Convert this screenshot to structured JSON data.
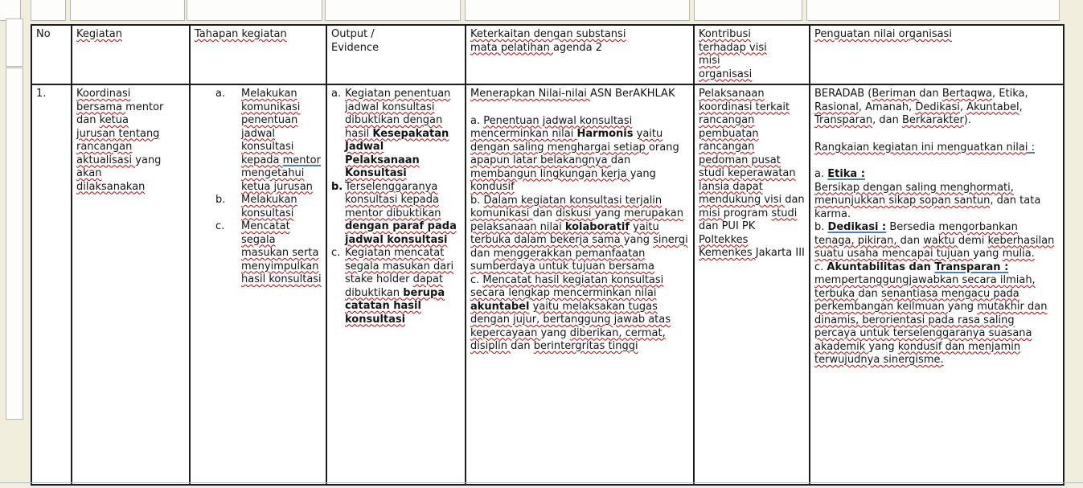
{
  "colors": {
    "page_bg": "#f1eedd",
    "table_border": "#1d1d1d",
    "spell_squiggle": "#c00000",
    "grammar_underline": "#4a7ebb",
    "bottom_rule": "#a6bcd7"
  },
  "table": {
    "headers": {
      "no": [
        [
          "No",
          ""
        ]
      ],
      "kegiatan": [
        [
          "Kegiatan",
          "s"
        ]
      ],
      "tahapan": [
        [
          "Tahapan kegiatan",
          "s"
        ]
      ],
      "output": [
        [
          "Output /\nEvidence",
          ""
        ]
      ],
      "keterkaitan": [
        [
          "Keterkaitan dengan substansi\n",
          "s"
        ],
        [
          "mata pelatihan ",
          "s"
        ],
        [
          "agenda 2",
          ""
        ]
      ],
      "kontribusi": [
        [
          "Kontribusi\nterhadap visi\nmisi\norganisasi",
          "s"
        ]
      ],
      "penguatan": [
        [
          "Penguatan nilai organisasi",
          "s"
        ]
      ]
    },
    "row1": {
      "no": [
        [
          "1.",
          ""
        ]
      ],
      "kegiatan": [
        [
          "Koordinasi bersama ",
          "s"
        ],
        [
          "mentor dan ",
          ""
        ],
        [
          "ketua jurusan tentang rancangan aktualisasi ",
          "s"
        ],
        [
          "yang ",
          ""
        ],
        [
          "akan dilaksanakan",
          "s"
        ]
      ],
      "tahapan_items": [
        {
          "marker": [
            [
              "a.",
              ""
            ]
          ],
          "text": [
            [
              "Melakukan komunikasi penentuan jadwal konsultasi kepada ",
              "s"
            ],
            [
              "mentor ",
              "u"
            ],
            [
              "mengetahui ketua jurusan",
              "s"
            ]
          ]
        },
        {
          "marker": [
            [
              "b.",
              ""
            ]
          ],
          "text": [
            [
              "Melakukan konsultasi",
              "s"
            ]
          ]
        },
        {
          "marker": [
            [
              "c.",
              ""
            ]
          ],
          "text": [
            [
              "Mencatat segala masukan serta menyimpulkan hasil konsultasi",
              "s"
            ]
          ]
        }
      ],
      "output_items": [
        {
          "marker": [
            [
              "a.",
              ""
            ]
          ],
          "text": [
            [
              "Kegiatan penentuan jadwal konsultasi dibuktikan dengan hasil ",
              "s"
            ],
            [
              "Kesepakatan Jadwal Pelaksanaan Konsultasi",
              "bs"
            ]
          ]
        },
        {
          "marker": [
            [
              "b.",
              "b"
            ]
          ],
          "text": [
            [
              "Terselenggaranya konsultasi kepada mentor dibuktikan ",
              "s"
            ],
            [
              "dengan paraf pada jadwal konsultasi",
              "bs"
            ]
          ]
        },
        {
          "marker": [
            [
              "c.",
              ""
            ]
          ],
          "text": [
            [
              "Kegiatan mencatat segala masukan dari ",
              "s"
            ],
            [
              "stake holder ",
              ""
            ],
            [
              "dapat dibuktikan ",
              "s"
            ],
            [
              "berupa catatan hasil konsultasi",
              "bs"
            ]
          ]
        }
      ],
      "keterkaitan_paragraphs": [
        [
          [
            "Menerapkan Nilai-nilai ",
            "s"
          ],
          [
            "ASN BerAKHLAK",
            ""
          ]
        ],
        [
          [
            "a. ",
            ""
          ],
          [
            "Penentuan jadwal konsultasi mencerminkan nilai ",
            "s"
          ],
          [
            "Harmonis",
            "b"
          ],
          [
            " ",
            ""
          ],
          [
            "yaitu dengan saling menghargai setiap ",
            "s"
          ],
          [
            "orang ",
            ""
          ],
          [
            "apapun latar belakangnya ",
            "s"
          ],
          [
            "dan ",
            ""
          ],
          [
            "membangun lingkungan kerja ",
            "s"
          ],
          [
            "yang ",
            ""
          ],
          [
            "kondusif",
            "s"
          ]
        ],
        [
          [
            "b. ",
            ""
          ],
          [
            "Dalam kegiatan konsultasi terjalin komunikasi ",
            "s"
          ],
          [
            "dan ",
            ""
          ],
          [
            "diskusi ",
            "s"
          ],
          [
            "yang ",
            ""
          ],
          [
            "merupakan pelaksanaan nilai ",
            "s"
          ],
          [
            "kolaboratif",
            "bs"
          ],
          [
            " ",
            ""
          ],
          [
            "yaitu terbuka dalam bekerja sama ",
            "s"
          ],
          [
            "yang ",
            ""
          ],
          [
            "sinergi ",
            "s"
          ],
          [
            "dan ",
            ""
          ],
          [
            "menggerakkan pemanfaatan sumberdaya untuk tujuan bersama",
            "s"
          ]
        ],
        [
          [
            "c. ",
            ""
          ],
          [
            "Mencatat hasil kegiatan konsultasi secara lengkap mencerminkan nilai ",
            "s"
          ],
          [
            "akuntabel",
            "bs"
          ],
          [
            " ",
            ""
          ],
          [
            "yaitu melaksakan tugas dengan jujur, bertanggung jawab atas kepercayaan ",
            "s"
          ],
          [
            "yang ",
            ""
          ],
          [
            "diberikan, cermat, disiplin ",
            "s"
          ],
          [
            "dan ",
            ""
          ],
          [
            "berintergritas tinggi",
            "s"
          ]
        ]
      ],
      "kontribusi": [
        [
          "Pelaksanaan koordinasi terkait rancangan pembuatan rancangan pedoman pusat studi keperawatan lansia dapat mendukung visi ",
          "s"
        ],
        [
          "dan ",
          ""
        ],
        [
          "misi ",
          "s"
        ],
        [
          "program ",
          ""
        ],
        [
          "studi ",
          "s"
        ],
        [
          "dan PUI PK ",
          ""
        ],
        [
          "Poltekkes Kemenkes ",
          "s"
        ],
        [
          "Jakarta III",
          ""
        ]
      ],
      "penguatan_paragraphs": [
        [
          [
            "BERADAB (",
            ""
          ],
          [
            "Beriman ",
            "s"
          ],
          [
            "dan ",
            ""
          ],
          [
            "Bertaqwa",
            "s"
          ],
          [
            ", Etika, ",
            ""
          ],
          [
            "Rasional",
            "s"
          ],
          [
            ", Amanah, ",
            ""
          ],
          [
            "Dedikasi",
            "s"
          ],
          [
            ", ",
            ""
          ],
          [
            "Akuntabel",
            "s"
          ],
          [
            ", ",
            ""
          ],
          [
            "Transparan",
            "s"
          ],
          [
            ", dan ",
            ""
          ],
          [
            "Berkarakter",
            "s"
          ],
          [
            ").",
            ""
          ]
        ],
        [
          [
            "Rangkaian kegiatan ini menguatkan nilai",
            "s"
          ],
          [
            " :",
            "u"
          ]
        ],
        [
          [
            "a. ",
            ""
          ],
          [
            "Etika :",
            "bu"
          ]
        ],
        [
          [
            "Bersikap dengan saling menghormati, menunjukkan sikap sopan santun",
            "s"
          ],
          [
            ", dan tata karma.",
            ""
          ]
        ],
        [
          [
            "b. ",
            ""
          ],
          [
            "Dedikasi :",
            "bu"
          ],
          [
            "  Bersedia ",
            ""
          ],
          [
            "mengorbankan tenaga, pikiran, ",
            "s"
          ],
          [
            "dan ",
            ""
          ],
          [
            "waktu ",
            "s"
          ],
          [
            "demi ",
            ""
          ],
          [
            "keberhasilan suatu usaha mencapai tujuan ",
            "s"
          ],
          [
            "yang ",
            ""
          ],
          [
            "mulia.",
            "s"
          ]
        ],
        [
          [
            "c. ",
            ""
          ],
          [
            "Akuntabilitas dan ",
            "b"
          ],
          [
            "Transparan :",
            "bu"
          ],
          [
            "\n",
            ""
          ],
          [
            "mempertanggungjawabkan secara ilmiah, terbuka ",
            "s"
          ],
          [
            "dan ",
            ""
          ],
          [
            "senantiasa mengacu pada perkembangan keilmuan ",
            "s"
          ],
          [
            "yang ",
            ""
          ],
          [
            "mutakhir dan dinamis, berorientasi pada rasa saling percaya untuk terselenggaranya suasana akademik ",
            "s"
          ],
          [
            "yang ",
            ""
          ],
          [
            "kondusif dan menjamin terwujudnya sinergisme.",
            "s"
          ]
        ]
      ]
    }
  }
}
